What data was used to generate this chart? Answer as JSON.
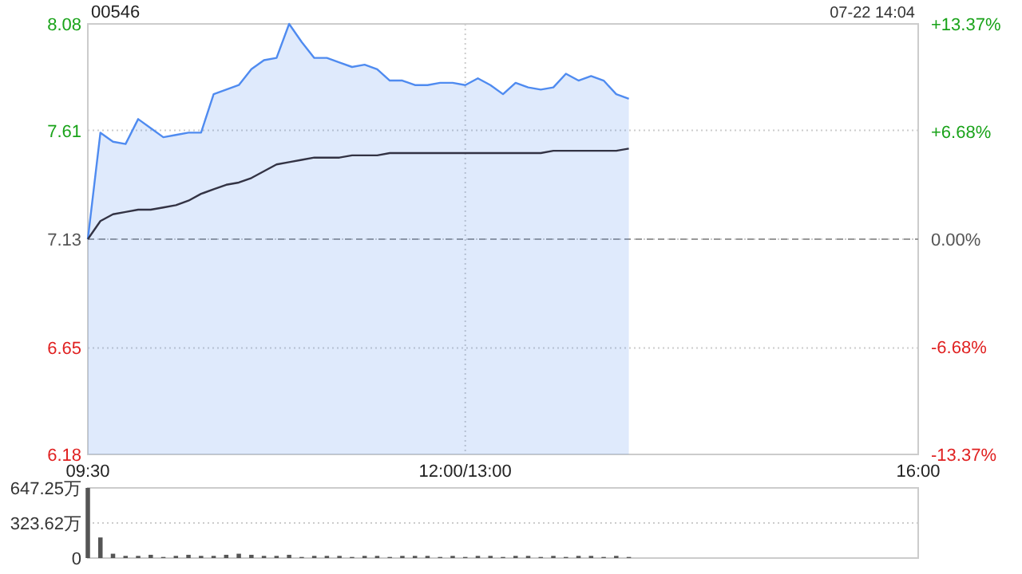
{
  "chart_data": [
    {
      "type": "line",
      "title": "00546",
      "annotations": [
        "07-22 14:04"
      ],
      "categories": [
        "09:30",
        null,
        null,
        null,
        null,
        null,
        null,
        null,
        null,
        null,
        null,
        null,
        null,
        null,
        null,
        null,
        null,
        null,
        null,
        null,
        null,
        null,
        null,
        null,
        null,
        null,
        null,
        null,
        null,
        null,
        "12:00/13:00",
        null,
        null,
        null,
        null,
        null,
        null,
        null,
        null,
        null,
        null,
        null,
        null,
        null,
        null,
        null,
        null,
        null,
        null,
        null,
        null,
        null,
        null,
        null,
        null,
        null,
        null,
        null,
        null,
        null,
        null,
        null,
        null,
        null,
        null,
        null,
        "16:00"
      ],
      "ylim": [
        6.18,
        8.08
      ],
      "yticks": [
        6.18,
        6.65,
        7.13,
        7.61,
        8.08
      ],
      "y2lim": [
        -13.37,
        13.37
      ],
      "y2ticks": [
        {
          "value": -13.37,
          "label": "-13.37%"
        },
        {
          "value": -6.68,
          "label": "-6.68%"
        },
        {
          "value": 0,
          "label": "0.00%"
        },
        {
          "value": 6.68,
          "label": "+6.68%"
        },
        {
          "value": 13.37,
          "label": "+13.37%"
        }
      ],
      "grid": true,
      "ref_lines": [
        {
          "axis": "y",
          "value": 7.13,
          "color": "#999999",
          "line_style": "dashed"
        }
      ],
      "series": [
        {
          "type": "area",
          "color": "#4f8bf0",
          "values": [
            7.13,
            7.6,
            7.56,
            7.55,
            7.66,
            7.62,
            7.58,
            7.59,
            7.6,
            7.6,
            7.77,
            7.79,
            7.81,
            7.88,
            7.92,
            7.93,
            8.08,
            8.0,
            7.93,
            7.93,
            7.91,
            7.89,
            7.9,
            7.88,
            7.83,
            7.83,
            7.81,
            7.81,
            7.82,
            7.82,
            7.81,
            7.84,
            7.81,
            7.77,
            7.82,
            7.8,
            7.79,
            7.8,
            7.86,
            7.83,
            7.85,
            7.83,
            7.77,
            7.75,
            null,
            null,
            null,
            null,
            null,
            null,
            null,
            null,
            null,
            null,
            null,
            null,
            null,
            null,
            null,
            null,
            null,
            null,
            null,
            null,
            null,
            null,
            null
          ]
        },
        {
          "type": "line",
          "color": "#333344",
          "values": [
            7.13,
            7.21,
            7.24,
            7.25,
            7.26,
            7.26,
            7.27,
            7.28,
            7.3,
            7.33,
            7.35,
            7.37,
            7.38,
            7.4,
            7.43,
            7.46,
            7.47,
            7.48,
            7.49,
            7.49,
            7.49,
            7.5,
            7.5,
            7.5,
            7.51,
            7.51,
            7.51,
            7.51,
            7.51,
            7.51,
            7.51,
            7.51,
            7.51,
            7.51,
            7.51,
            7.51,
            7.51,
            7.52,
            7.52,
            7.52,
            7.52,
            7.52,
            7.52,
            7.53,
            null,
            null,
            null,
            null,
            null,
            null,
            null,
            null,
            null,
            null,
            null,
            null,
            null,
            null,
            null,
            null,
            null,
            null,
            null,
            null,
            null,
            null,
            null
          ]
        }
      ]
    },
    {
      "type": "bar",
      "color": "#555555",
      "tick_labels": "y",
      "grid": "y",
      "categories": [
        null,
        null,
        null,
        null,
        null,
        null,
        null,
        null,
        null,
        null,
        null,
        null,
        null,
        null,
        null,
        null,
        null,
        null,
        null,
        null,
        null,
        null,
        null,
        null,
        null,
        null,
        null,
        null,
        null,
        null,
        null,
        null,
        null,
        null,
        null,
        null,
        null,
        null,
        null,
        null,
        null,
        null,
        null,
        null,
        null,
        null,
        null,
        null,
        null,
        null,
        null,
        null,
        null,
        null,
        null,
        null,
        null,
        null,
        null,
        null,
        null,
        null,
        null,
        null,
        null,
        null,
        null
      ],
      "ylim": [
        0,
        647.25
      ],
      "yticks": [
        0,
        {
          "value": 323.62,
          "label": "323.62万"
        },
        {
          "value": 647.25,
          "label": "647.25万"
        }
      ],
      "values": [
        647.25,
        190,
        40,
        20,
        20,
        30,
        10,
        20,
        30,
        20,
        20,
        30,
        40,
        30,
        20,
        20,
        30,
        10,
        20,
        20,
        20,
        10,
        20,
        20,
        10,
        20,
        20,
        20,
        10,
        20,
        10,
        20,
        20,
        10,
        20,
        20,
        10,
        20,
        10,
        20,
        20,
        10,
        20,
        10,
        null,
        null,
        null,
        null,
        null,
        null,
        null,
        null,
        null,
        null,
        null,
        null,
        null,
        null,
        null,
        null,
        null,
        null,
        null,
        null,
        null,
        null,
        null
      ]
    }
  ]
}
